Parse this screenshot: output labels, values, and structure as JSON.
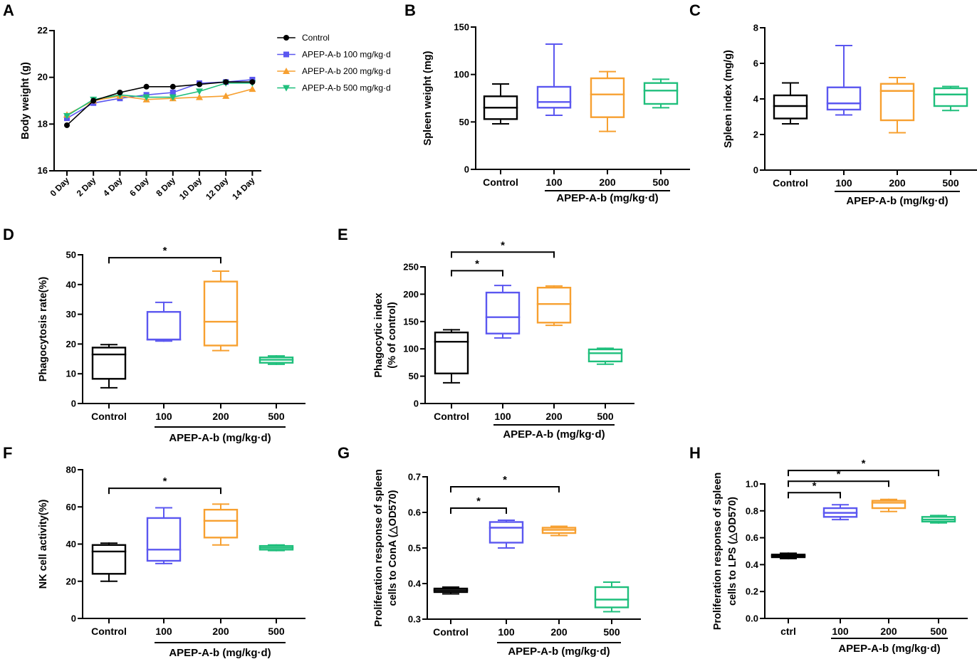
{
  "colors": {
    "control": "#000000",
    "dose100": "#5b57f0",
    "dose200": "#f7a030",
    "dose500": "#1fbf7c"
  },
  "chart_data": [
    {
      "id": "A",
      "panel_label": "A",
      "type": "line",
      "title": "",
      "xlabel": "",
      "ylabel": "Body weight (g)",
      "categories": [
        "0 Day",
        "2 Day",
        "4 Day",
        "6 Day",
        "8 Day",
        "10 Day",
        "12 Day",
        "14 Day"
      ],
      "ylim": [
        16,
        22
      ],
      "yticks": [
        16,
        18,
        20,
        22
      ],
      "legend_position": "right",
      "series": [
        {
          "name": "Control",
          "color_key": "control",
          "marker": "circle",
          "values": [
            17.95,
            19.0,
            19.35,
            19.6,
            19.6,
            19.7,
            19.8,
            19.8
          ]
        },
        {
          "name": "APEP-A-b 100 mg/kg·d",
          "color_key": "dose100",
          "marker": "square",
          "values": [
            18.25,
            18.9,
            19.1,
            19.25,
            19.35,
            19.75,
            19.8,
            19.9
          ]
        },
        {
          "name": "APEP-A-b 200 mg/kg·d",
          "color_key": "dose200",
          "marker": "triangle-up",
          "values": [
            18.4,
            19.0,
            19.2,
            19.05,
            19.1,
            19.15,
            19.2,
            19.5
          ]
        },
        {
          "name": "APEP-A-b 500 mg/kg·d",
          "color_key": "dose500",
          "marker": "triangle-down",
          "values": [
            18.35,
            19.05,
            19.25,
            19.15,
            19.15,
            19.4,
            19.75,
            19.75
          ]
        }
      ]
    },
    {
      "id": "B",
      "panel_label": "B",
      "type": "box",
      "ylabel": "Spleen weight (mg)",
      "ylim": [
        0,
        150
      ],
      "yticks": [
        0,
        50,
        100,
        150
      ],
      "ytick_labels": [
        "0",
        "50",
        "100",
        "150"
      ],
      "categories": [
        "Control",
        "100",
        "200",
        "500"
      ],
      "group_label": "APEP-A-b (mg/kg·d)",
      "boxes": [
        {
          "min": 48,
          "q1": 53,
          "median": 65,
          "q3": 77,
          "max": 90
        },
        {
          "min": 57,
          "q1": 65,
          "median": 71,
          "q3": 87,
          "max": 132
        },
        {
          "min": 40,
          "q1": 55,
          "median": 79,
          "q3": 96,
          "max": 103
        },
        {
          "min": 65,
          "q1": 69,
          "median": 83,
          "q3": 91,
          "max": 95
        }
      ],
      "significance": []
    },
    {
      "id": "C",
      "panel_label": "C",
      "type": "box",
      "ylabel": "Spleen index (mg/g)",
      "ylim": [
        0,
        8
      ],
      "yticks": [
        0,
        2,
        4,
        6,
        8
      ],
      "ytick_labels": [
        "0",
        "2",
        "4",
        "6",
        "8"
      ],
      "categories": [
        "Control",
        "100",
        "200",
        "500"
      ],
      "group_label": "APEP-A-b (mg/kg·d)",
      "boxes": [
        {
          "min": 2.6,
          "q1": 2.9,
          "median": 3.6,
          "q3": 4.2,
          "max": 4.9
        },
        {
          "min": 3.1,
          "q1": 3.4,
          "median": 3.75,
          "q3": 4.65,
          "max": 7.0
        },
        {
          "min": 2.1,
          "q1": 2.8,
          "median": 4.45,
          "q3": 4.85,
          "max": 5.2
        },
        {
          "min": 3.35,
          "q1": 3.6,
          "median": 4.25,
          "q3": 4.6,
          "max": 4.7
        }
      ],
      "significance": []
    },
    {
      "id": "D",
      "panel_label": "D",
      "type": "box",
      "ylabel": "Phagocytosis rate(%)",
      "ylim": [
        0,
        50
      ],
      "yticks": [
        0,
        10,
        20,
        30,
        40,
        50
      ],
      "ytick_labels": [
        "0",
        "10",
        "20",
        "30",
        "40",
        "50"
      ],
      "categories": [
        "Control",
        "100",
        "200",
        "500"
      ],
      "group_label": "APEP-A-b (mg/kg·d)",
      "boxes": [
        {
          "min": 5.3,
          "q1": 8.3,
          "median": 16.5,
          "q3": 18.8,
          "max": 19.8
        },
        {
          "min": 21.0,
          "q1": 21.5,
          "median": 21.5,
          "q3": 30.8,
          "max": 34.0
        },
        {
          "min": 17.8,
          "q1": 19.5,
          "median": 27.5,
          "q3": 41.0,
          "max": 44.5
        },
        {
          "min": 13.2,
          "q1": 13.7,
          "median": 14.7,
          "q3": 15.5,
          "max": 16.0
        }
      ],
      "significance": [
        {
          "from": 0,
          "to": 2,
          "label": "*",
          "y": 49
        }
      ]
    },
    {
      "id": "E",
      "panel_label": "E",
      "type": "box",
      "ylabel": "Phagocytic index",
      "ylabel2": "(% of control)",
      "ylim": [
        0,
        250
      ],
      "yticks": [
        0,
        50,
        100,
        150,
        200,
        250
      ],
      "ytick_labels": [
        "0",
        "50",
        "100",
        "150",
        "200",
        "250"
      ],
      "categories": [
        "Control",
        "100",
        "200",
        "500"
      ],
      "group_label": "APEP-A-b (mg/kg·d)",
      "boxes": [
        {
          "min": 38,
          "q1": 55,
          "median": 113,
          "q3": 130,
          "max": 135
        },
        {
          "min": 120,
          "q1": 128,
          "median": 158,
          "q3": 203,
          "max": 216
        },
        {
          "min": 143,
          "q1": 148,
          "median": 182,
          "q3": 212,
          "max": 215
        },
        {
          "min": 72,
          "q1": 77,
          "median": 92,
          "q3": 99,
          "max": 101
        }
      ],
      "significance": [
        {
          "from": 0,
          "to": 1,
          "label": "*",
          "y": 243
        },
        {
          "from": 0,
          "to": 2,
          "label": "*",
          "y": 277
        }
      ]
    },
    {
      "id": "F",
      "panel_label": "F",
      "type": "box",
      "ylabel": "NK cell activity(%)",
      "ylim": [
        0,
        80
      ],
      "yticks": [
        0,
        20,
        40,
        60,
        80
      ],
      "ytick_labels": [
        "0",
        "20",
        "40",
        "60",
        "80"
      ],
      "categories": [
        "Control",
        "100",
        "200",
        "500"
      ],
      "group_label": "APEP-A-b (mg/kg·d)",
      "boxes": [
        {
          "min": 20,
          "q1": 24,
          "median": 36,
          "q3": 39.5,
          "max": 40.5
        },
        {
          "min": 29.5,
          "q1": 31,
          "median": 37,
          "q3": 54,
          "max": 59.5
        },
        {
          "min": 39.5,
          "q1": 43.5,
          "median": 52.5,
          "q3": 58.5,
          "max": 61.5
        },
        {
          "min": 36.5,
          "q1": 37,
          "median": 38,
          "q3": 39,
          "max": 39.5
        }
      ],
      "significance": [
        {
          "from": 0,
          "to": 2,
          "label": "*",
          "y": 70
        }
      ]
    },
    {
      "id": "G",
      "panel_label": "G",
      "type": "box",
      "ylabel": "Proliferation response of spleen",
      "ylabel2": "cells to ConA (△OD570)",
      "ylim": [
        0.3,
        0.7
      ],
      "yticks": [
        0.3,
        0.4,
        0.5,
        0.6,
        0.7
      ],
      "ytick_labels": [
        "0.3",
        "0.4",
        "0.5",
        "0.6",
        "0.7"
      ],
      "categories": [
        "Control",
        "100",
        "200",
        "500"
      ],
      "group_label": "APEP-A-b (mg/kg·d)",
      "boxes": [
        {
          "min": 0.371,
          "q1": 0.376,
          "median": 0.381,
          "q3": 0.386,
          "max": 0.39
        },
        {
          "min": 0.5,
          "q1": 0.515,
          "median": 0.557,
          "q3": 0.573,
          "max": 0.578
        },
        {
          "min": 0.535,
          "q1": 0.542,
          "median": 0.551,
          "q3": 0.557,
          "max": 0.561
        },
        {
          "min": 0.321,
          "q1": 0.333,
          "median": 0.355,
          "q3": 0.39,
          "max": 0.404
        }
      ],
      "significance": [
        {
          "from": 0,
          "to": 1,
          "label": "*",
          "y": 0.612
        },
        {
          "from": 0,
          "to": 2,
          "label": "*",
          "y": 0.672
        }
      ]
    },
    {
      "id": "H",
      "panel_label": "H",
      "type": "box",
      "ylabel": "Proliferation response of spleen",
      "ylabel2": "cells to LPS (△OD570)",
      "ylim": [
        0,
        1.0
      ],
      "yticks": [
        0,
        0.2,
        0.4,
        0.6,
        0.8,
        1.0
      ],
      "ytick_labels": [
        "0.0",
        "0.2",
        "0.4",
        "0.6",
        "0.8",
        "1.0"
      ],
      "categories": [
        "ctrl",
        "100",
        "200",
        "500"
      ],
      "group_label": "APEP-A-b (mg/kg·d)",
      "boxes": [
        {
          "min": 0.445,
          "q1": 0.455,
          "median": 0.465,
          "q3": 0.475,
          "max": 0.485
        },
        {
          "min": 0.735,
          "q1": 0.755,
          "median": 0.785,
          "q3": 0.82,
          "max": 0.845
        },
        {
          "min": 0.795,
          "q1": 0.82,
          "median": 0.86,
          "q3": 0.875,
          "max": 0.885
        },
        {
          "min": 0.71,
          "q1": 0.72,
          "median": 0.735,
          "q3": 0.755,
          "max": 0.765
        }
      ],
      "significance": [
        {
          "from": 0,
          "to": 1,
          "label": "*",
          "y": 0.935
        },
        {
          "from": 0,
          "to": 2,
          "label": "*",
          "y": 1.02
        },
        {
          "from": 0,
          "to": 3,
          "label": "*",
          "y": 1.1
        }
      ]
    }
  ]
}
